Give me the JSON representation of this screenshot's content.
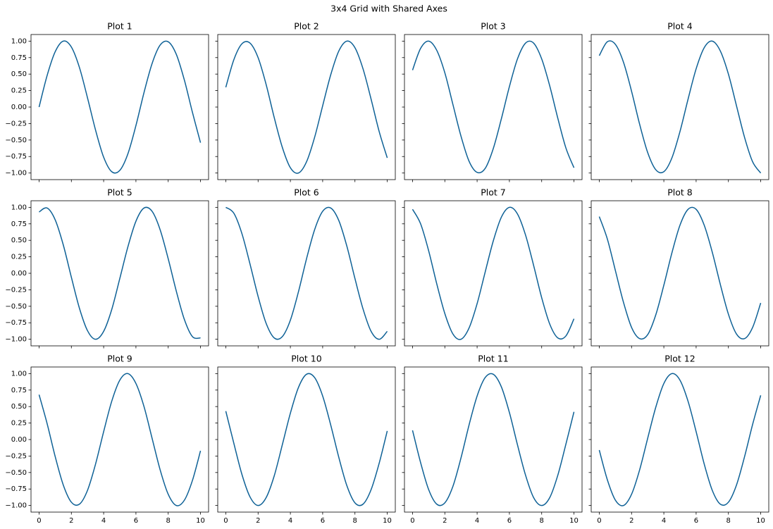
{
  "title": "3x4 Grid with Shared Axes",
  "chart_data": [
    {
      "type": "line",
      "title": "Plot 1",
      "x": [
        0,
        0.5,
        1,
        1.5,
        2,
        2.5,
        3,
        3.5,
        4,
        4.5,
        5,
        5.5,
        6,
        6.5,
        7,
        7.5,
        8,
        8.5,
        9,
        9.5,
        10
      ],
      "series": [
        {
          "color": "#0e6196",
          "values": [
            0.0,
            0.48,
            0.84,
            1.0,
            0.91,
            0.6,
            0.14,
            -0.35,
            -0.76,
            -0.98,
            -0.96,
            -0.71,
            -0.28,
            0.22,
            0.66,
            0.94,
            0.99,
            0.8,
            0.41,
            -0.08,
            -0.54
          ]
        }
      ],
      "xlim": [
        -0.5,
        10.5
      ],
      "ylim": [
        -1.1,
        1.1
      ],
      "xticks": [
        0,
        2,
        4,
        6,
        8,
        10
      ],
      "yticks": [
        {
          "value": -1,
          "label": "−1.00"
        },
        {
          "value": -0.75,
          "label": "−0.75"
        },
        {
          "value": -0.5,
          "label": "−0.50"
        },
        {
          "value": -0.25,
          "label": "−0.25"
        },
        {
          "value": 0,
          "label": "0.00"
        },
        {
          "value": 0.25,
          "label": "0.25"
        },
        {
          "value": 0.5,
          "label": "0.50"
        },
        {
          "value": 0.75,
          "label": "0.75"
        },
        {
          "value": 1,
          "label": "1.00"
        }
      ]
    },
    {
      "type": "line",
      "title": "Plot 2",
      "x": [
        0,
        0.5,
        1,
        1.5,
        2,
        2.5,
        3,
        3.5,
        4,
        4.5,
        5,
        5.5,
        6,
        6.5,
        7,
        7.5,
        8,
        8.5,
        9,
        9.5,
        10
      ],
      "series": [
        {
          "color": "#0e6196",
          "values": [
            0.3,
            0.72,
            0.96,
            0.97,
            0.75,
            0.34,
            -0.16,
            -0.61,
            -0.92,
            -1.0,
            -0.83,
            -0.46,
            0.02,
            0.49,
            0.85,
            1.0,
            0.9,
            0.58,
            0.12,
            -0.37,
            -0.77
          ]
        }
      ],
      "xlim": [
        -0.5,
        10.5
      ],
      "ylim": [
        -1.1,
        1.1
      ],
      "xticks": [
        0,
        2,
        4,
        6,
        8,
        10
      ],
      "yticks": [
        -1,
        -0.75,
        -0.5,
        -0.25,
        0,
        0.25,
        0.5,
        0.75,
        1
      ]
    },
    {
      "type": "line",
      "title": "Plot 3",
      "x": [
        0,
        0.5,
        1,
        1.5,
        2,
        2.5,
        3,
        3.5,
        4,
        4.5,
        5,
        5.5,
        6,
        6.5,
        7,
        7.5,
        8,
        8.5,
        9,
        9.5,
        10
      ],
      "series": [
        {
          "color": "#0e6196",
          "values": [
            0.56,
            0.89,
            1.0,
            0.86,
            0.52,
            0.04,
            -0.44,
            -0.82,
            -0.99,
            -0.93,
            -0.63,
            -0.18,
            0.31,
            0.73,
            0.97,
            0.97,
            0.73,
            0.32,
            -0.17,
            -0.62,
            -0.92
          ]
        }
      ],
      "xlim": [
        -0.5,
        10.5
      ],
      "ylim": [
        -1.1,
        1.1
      ],
      "xticks": [
        0,
        2,
        4,
        6,
        8,
        10
      ],
      "yticks": [
        -1,
        -0.75,
        -0.5,
        -0.25,
        0,
        0.25,
        0.5,
        0.75,
        1
      ]
    },
    {
      "type": "line",
      "title": "Plot 4",
      "x": [
        0,
        0.5,
        1,
        1.5,
        2,
        2.5,
        3,
        3.5,
        4,
        4.5,
        5,
        5.5,
        6,
        6.5,
        7,
        7.5,
        8,
        8.5,
        9,
        9.5,
        10
      ],
      "series": [
        {
          "color": "#0e6196",
          "values": [
            0.78,
            0.99,
            0.95,
            0.68,
            0.24,
            -0.26,
            -0.69,
            -0.95,
            -0.98,
            -0.77,
            -0.37,
            0.12,
            0.58,
            0.9,
            1.0,
            0.85,
            0.5,
            0.02,
            -0.46,
            -0.83,
            -1.0
          ]
        }
      ],
      "xlim": [
        -0.5,
        10.5
      ],
      "ylim": [
        -1.1,
        1.1
      ],
      "xticks": [
        0,
        2,
        4,
        6,
        8,
        10
      ],
      "yticks": [
        -1,
        -0.75,
        -0.5,
        -0.25,
        0,
        0.25,
        0.5,
        0.75,
        1
      ]
    },
    {
      "type": "line",
      "title": "Plot 5",
      "x": [
        0,
        0.5,
        1,
        1.5,
        2,
        2.5,
        3,
        3.5,
        4,
        4.5,
        5,
        5.5,
        6,
        6.5,
        7,
        7.5,
        8,
        8.5,
        9,
        9.5,
        10
      ],
      "series": [
        {
          "color": "#0e6196",
          "values": [
            0.93,
            0.99,
            0.81,
            0.43,
            -0.06,
            -0.53,
            -0.87,
            -1.0,
            -0.88,
            -0.55,
            -0.08,
            0.4,
            0.79,
            0.99,
            0.94,
            0.66,
            0.22,
            -0.27,
            -0.7,
            -0.96,
            -0.98
          ]
        }
      ],
      "xlim": [
        -0.5,
        10.5
      ],
      "ylim": [
        -1.1,
        1.1
      ],
      "xticks": [
        0,
        2,
        4,
        6,
        8,
        10
      ],
      "yticks": [
        {
          "value": -1,
          "label": "−1.00"
        },
        {
          "value": -0.75,
          "label": "−0.75"
        },
        {
          "value": -0.5,
          "label": "−0.50"
        },
        {
          "value": -0.25,
          "label": "−0.25"
        },
        {
          "value": 0,
          "label": "0.00"
        },
        {
          "value": 0.25,
          "label": "0.25"
        },
        {
          "value": 0.5,
          "label": "0.50"
        },
        {
          "value": 0.75,
          "label": "0.75"
        },
        {
          "value": 1,
          "label": "1.00"
        }
      ]
    },
    {
      "type": "line",
      "title": "Plot 6",
      "x": [
        0,
        0.5,
        1,
        1.5,
        2,
        2.5,
        3,
        3.5,
        4,
        4.5,
        5,
        5.5,
        6,
        6.5,
        7,
        7.5,
        8,
        8.5,
        9,
        9.5,
        10
      ],
      "series": [
        {
          "color": "#0e6196",
          "values": [
            1.0,
            0.91,
            0.6,
            0.14,
            -0.35,
            -0.76,
            -0.98,
            -0.96,
            -0.71,
            -0.28,
            0.22,
            0.66,
            0.94,
            0.99,
            0.8,
            0.41,
            -0.08,
            -0.54,
            -0.88,
            -1.0,
            -0.88
          ]
        }
      ],
      "xlim": [
        -0.5,
        10.5
      ],
      "ylim": [
        -1.1,
        1.1
      ],
      "xticks": [
        0,
        2,
        4,
        6,
        8,
        10
      ],
      "yticks": [
        -1,
        -0.75,
        -0.5,
        -0.25,
        0,
        0.25,
        0.5,
        0.75,
        1
      ]
    },
    {
      "type": "line",
      "title": "Plot 7",
      "x": [
        0,
        0.5,
        1,
        1.5,
        2,
        2.5,
        3,
        3.5,
        4,
        4.5,
        5,
        5.5,
        6,
        6.5,
        7,
        7.5,
        8,
        8.5,
        9,
        9.5,
        10
      ],
      "series": [
        {
          "color": "#0e6196",
          "values": [
            0.97,
            0.75,
            0.34,
            -0.16,
            -0.61,
            -0.92,
            -1.0,
            -0.83,
            -0.46,
            0.02,
            0.49,
            0.85,
            1.0,
            0.9,
            0.58,
            0.12,
            -0.37,
            -0.77,
            -0.98,
            -0.95,
            -0.69
          ]
        }
      ],
      "xlim": [
        -0.5,
        10.5
      ],
      "ylim": [
        -1.1,
        1.1
      ],
      "xticks": [
        0,
        2,
        4,
        6,
        8,
        10
      ],
      "yticks": [
        -1,
        -0.75,
        -0.5,
        -0.25,
        0,
        0.25,
        0.5,
        0.75,
        1
      ]
    },
    {
      "type": "line",
      "title": "Plot 8",
      "x": [
        0,
        0.5,
        1,
        1.5,
        2,
        2.5,
        3,
        3.5,
        4,
        4.5,
        5,
        5.5,
        6,
        6.5,
        7,
        7.5,
        8,
        8.5,
        9,
        9.5,
        10
      ],
      "series": [
        {
          "color": "#0e6196",
          "values": [
            0.86,
            0.52,
            0.04,
            -0.44,
            -0.82,
            -0.99,
            -0.93,
            -0.63,
            -0.18,
            0.31,
            0.73,
            0.97,
            0.97,
            0.73,
            0.32,
            -0.17,
            -0.62,
            -0.92,
            -0.99,
            -0.82,
            -0.45
          ]
        }
      ],
      "xlim": [
        -0.5,
        10.5
      ],
      "ylim": [
        -1.1,
        1.1
      ],
      "xticks": [
        0,
        2,
        4,
        6,
        8,
        10
      ],
      "yticks": [
        -1,
        -0.75,
        -0.5,
        -0.25,
        0,
        0.25,
        0.5,
        0.75,
        1
      ]
    },
    {
      "type": "line",
      "title": "Plot 9",
      "x": [
        0,
        0.5,
        1,
        1.5,
        2,
        2.5,
        3,
        3.5,
        4,
        4.5,
        5,
        5.5,
        6,
        6.5,
        7,
        7.5,
        8,
        8.5,
        9,
        9.5,
        10
      ],
      "series": [
        {
          "color": "#0e6196",
          "values": [
            0.68,
            0.24,
            -0.26,
            -0.69,
            -0.95,
            -0.98,
            -0.77,
            -0.37,
            0.12,
            0.58,
            0.9,
            1.0,
            0.85,
            0.5,
            0.02,
            -0.46,
            -0.83,
            -1.0,
            -0.92,
            -0.62,
            -0.17
          ]
        }
      ],
      "xlim": [
        -0.5,
        10.5
      ],
      "ylim": [
        -1.1,
        1.1
      ],
      "xticks": [
        0,
        2,
        4,
        6,
        8,
        10
      ],
      "yticks": [
        {
          "value": -1,
          "label": "−1.00"
        },
        {
          "value": -0.75,
          "label": "−0.75"
        },
        {
          "value": -0.5,
          "label": "−0.50"
        },
        {
          "value": -0.25,
          "label": "−0.25"
        },
        {
          "value": 0,
          "label": "0.00"
        },
        {
          "value": 0.25,
          "label": "0.25"
        },
        {
          "value": 0.5,
          "label": "0.50"
        },
        {
          "value": 0.75,
          "label": "0.75"
        },
        {
          "value": 1,
          "label": "1.00"
        }
      ]
    },
    {
      "type": "line",
      "title": "Plot 10",
      "x": [
        0,
        0.5,
        1,
        1.5,
        2,
        2.5,
        3,
        3.5,
        4,
        4.5,
        5,
        5.5,
        6,
        6.5,
        7,
        7.5,
        8,
        8.5,
        9,
        9.5,
        10
      ],
      "series": [
        {
          "color": "#0e6196",
          "values": [
            0.43,
            -0.06,
            -0.53,
            -0.87,
            -1.0,
            -0.88,
            -0.55,
            -0.08,
            0.4,
            0.79,
            0.99,
            0.94,
            0.66,
            0.22,
            -0.27,
            -0.7,
            -0.96,
            -0.98,
            -0.76,
            -0.36,
            0.13
          ]
        }
      ],
      "xlim": [
        -0.5,
        10.5
      ],
      "ylim": [
        -1.1,
        1.1
      ],
      "xticks": [
        0,
        2,
        4,
        6,
        8,
        10
      ],
      "yticks": [
        -1,
        -0.75,
        -0.5,
        -0.25,
        0,
        0.25,
        0.5,
        0.75,
        1
      ]
    },
    {
      "type": "line",
      "title": "Plot 11",
      "x": [
        0,
        0.5,
        1,
        1.5,
        2,
        2.5,
        3,
        3.5,
        4,
        4.5,
        5,
        5.5,
        6,
        6.5,
        7,
        7.5,
        8,
        8.5,
        9,
        9.5,
        10
      ],
      "series": [
        {
          "color": "#0e6196",
          "values": [
            0.14,
            -0.35,
            -0.76,
            -0.98,
            -0.96,
            -0.71,
            -0.28,
            0.22,
            0.66,
            0.94,
            0.99,
            0.8,
            0.41,
            -0.08,
            -0.54,
            -0.88,
            -1.0,
            -0.88,
            -0.54,
            -0.07,
            0.42
          ]
        }
      ],
      "xlim": [
        -0.5,
        10.5
      ],
      "ylim": [
        -1.1,
        1.1
      ],
      "xticks": [
        0,
        2,
        4,
        6,
        8,
        10
      ],
      "yticks": [
        -1,
        -0.75,
        -0.5,
        -0.25,
        0,
        0.25,
        0.5,
        0.75,
        1
      ]
    },
    {
      "type": "line",
      "title": "Plot 12",
      "x": [
        0,
        0.5,
        1,
        1.5,
        2,
        2.5,
        3,
        3.5,
        4,
        4.5,
        5,
        5.5,
        6,
        6.5,
        7,
        7.5,
        8,
        8.5,
        9,
        9.5,
        10
      ],
      "series": [
        {
          "color": "#0e6196",
          "values": [
            -0.16,
            -0.61,
            -0.92,
            -1.0,
            -0.83,
            -0.46,
            0.02,
            0.49,
            0.85,
            1.0,
            0.9,
            0.58,
            0.12,
            -0.37,
            -0.77,
            -0.98,
            -0.95,
            -0.69,
            -0.26,
            0.23,
            0.67
          ]
        }
      ],
      "xlim": [
        -0.5,
        10.5
      ],
      "ylim": [
        -1.1,
        1.1
      ],
      "xticks": [
        0,
        2,
        4,
        6,
        8,
        10
      ],
      "yticks": [
        -1,
        -0.75,
        -0.5,
        -0.25,
        0,
        0.25,
        0.5,
        0.75,
        1
      ]
    }
  ]
}
